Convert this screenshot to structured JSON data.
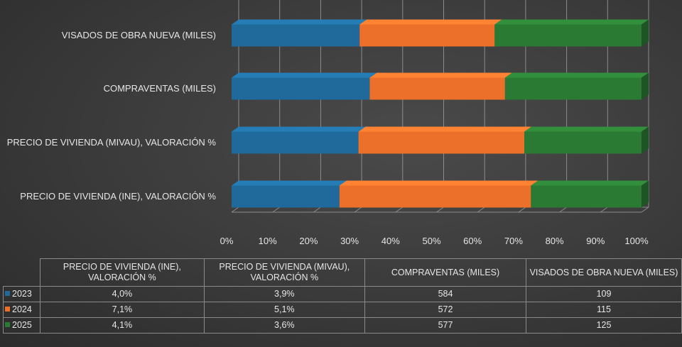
{
  "chart_data": {
    "type": "bar",
    "orientation": "horizontal",
    "stacked": "percent",
    "categories": [
      "PRECIO DE VIVIENDA (INE), VALORACIÓN %",
      "PRECIO DE VIVIENDA (MIVAU), VALORACIÓN %",
      "COMPRAVENTAS (MILES)",
      "VISADOS DE OBRA NUEVA (MILES)"
    ],
    "table_headers": [
      "PRECIO DE VIVIENDA (INE), VALORACIÓN %",
      "PRECIO DE VIVIENDA (MIVAU), VALORACIÓN %",
      "COMPRAVENTAS (MILES)",
      "VISADOS DE OBRA NUEVA (MILES)"
    ],
    "series": [
      {
        "name": "2023",
        "color": "#1f6a9a",
        "values": [
          4.0,
          3.9,
          584,
          109
        ],
        "labels": [
          "4,0%",
          "3,9%",
          "584",
          "109"
        ]
      },
      {
        "name": "2024",
        "color": "#ec6f2a",
        "values": [
          7.1,
          5.1,
          572,
          115
        ],
        "labels": [
          "7,1%",
          "5,1%",
          "572",
          "115"
        ]
      },
      {
        "name": "2025",
        "color": "#2a7a33",
        "values": [
          4.1,
          3.6,
          577,
          125
        ],
        "labels": [
          "4,1%",
          "3,6%",
          "577",
          "125"
        ]
      }
    ],
    "x_ticks": [
      "0%",
      "10%",
      "20%",
      "30%",
      "40%",
      "50%",
      "60%",
      "70%",
      "80%",
      "90%",
      "100%"
    ],
    "xlim": [
      0,
      100
    ],
    "grid": true,
    "legend": "data-table"
  }
}
